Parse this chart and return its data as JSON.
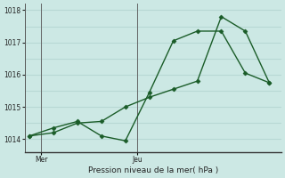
{
  "xlabel_label": "Pression niveau de la mer( hPa )",
  "bg_color": "#cce8e4",
  "grid_color": "#b8d8d4",
  "line_color": "#1a5c28",
  "line1_x": [
    0,
    1,
    2,
    3,
    4,
    5,
    6,
    7,
    8,
    9,
    10
  ],
  "line1_y": [
    1014.1,
    1014.35,
    1014.55,
    1014.1,
    1013.95,
    1015.45,
    1017.05,
    1017.35,
    1017.35,
    1016.05,
    1015.75
  ],
  "line2_x": [
    0,
    1,
    2,
    3,
    4,
    5,
    6,
    7,
    8,
    9,
    10
  ],
  "line2_y": [
    1014.1,
    1014.2,
    1014.5,
    1014.55,
    1015.0,
    1015.3,
    1015.55,
    1015.8,
    1017.8,
    1017.35,
    1015.75
  ],
  "xtick_positions": [
    0.5,
    4.5
  ],
  "xtick_labels": [
    "Mer",
    "Jeu"
  ],
  "vline_positions": [
    0.5,
    4.5
  ],
  "ylim": [
    1013.6,
    1018.2
  ],
  "yticks": [
    1014,
    1015,
    1016,
    1017,
    1018
  ],
  "xlim": [
    -0.2,
    10.5
  ],
  "marker": "D",
  "marker_size": 2.5
}
